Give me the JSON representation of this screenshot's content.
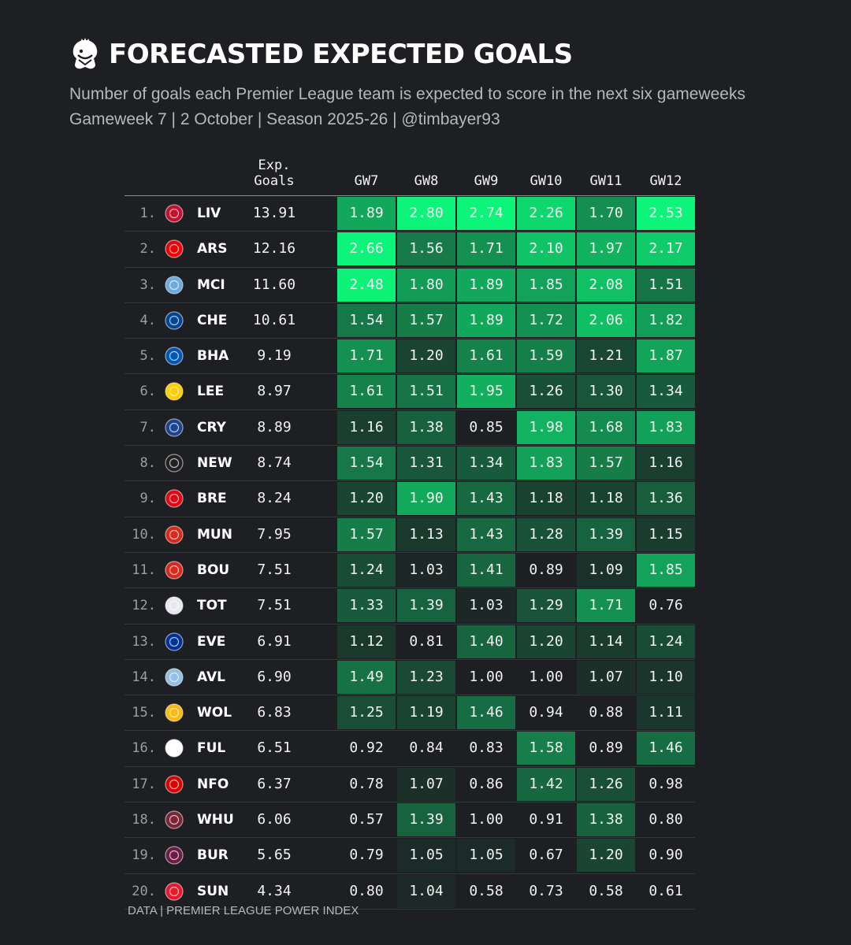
{
  "header": {
    "title": "FORECASTED EXPECTED GOALS",
    "subtitle_line1": "Number of goals each Premier League team is expected to score in the next six gameweeks",
    "subtitle_line2": "Gameweek 7 | 2 October | Season 2025-26 | @timbayer93"
  },
  "footer": {
    "source": "DATA | PREMIER LEAGUE POWER INDEX"
  },
  "colors": {
    "background": "#1d1f23",
    "low": "#1d1f23",
    "high": "#0cf47a"
  },
  "chart_data": {
    "type": "table",
    "title": "FORECASTED EXPECTED GOALS",
    "total_header": "Exp.\nGoals",
    "columns": [
      "GW7",
      "GW8",
      "GW9",
      "GW10",
      "GW11",
      "GW12"
    ],
    "color_scale": [
      1.0,
      2.5
    ],
    "rows": [
      {
        "rank": "1.",
        "team": "LIV",
        "total": "13.91",
        "values": [
          1.89,
          2.8,
          2.74,
          2.26,
          1.7,
          2.53
        ]
      },
      {
        "rank": "2.",
        "team": "ARS",
        "total": "12.16",
        "values": [
          2.66,
          1.56,
          1.71,
          2.1,
          1.97,
          2.17
        ]
      },
      {
        "rank": "3.",
        "team": "MCI",
        "total": "11.60",
        "values": [
          2.48,
          1.8,
          1.89,
          1.85,
          2.08,
          1.51
        ]
      },
      {
        "rank": "4.",
        "team": "CHE",
        "total": "10.61",
        "values": [
          1.54,
          1.57,
          1.89,
          1.72,
          2.06,
          1.82
        ]
      },
      {
        "rank": "5.",
        "team": "BHA",
        "total": "9.19",
        "values": [
          1.71,
          1.2,
          1.61,
          1.59,
          1.21,
          1.87
        ]
      },
      {
        "rank": "6.",
        "team": "LEE",
        "total": "8.97",
        "values": [
          1.61,
          1.51,
          1.95,
          1.26,
          1.3,
          1.34
        ]
      },
      {
        "rank": "7.",
        "team": "CRY",
        "total": "8.89",
        "values": [
          1.16,
          1.38,
          0.85,
          1.98,
          1.68,
          1.83
        ]
      },
      {
        "rank": "8.",
        "team": "NEW",
        "total": "8.74",
        "values": [
          1.54,
          1.31,
          1.34,
          1.83,
          1.57,
          1.16
        ]
      },
      {
        "rank": "9.",
        "team": "BRE",
        "total": "8.24",
        "values": [
          1.2,
          1.9,
          1.43,
          1.18,
          1.18,
          1.36
        ]
      },
      {
        "rank": "10.",
        "team": "MUN",
        "total": "7.95",
        "values": [
          1.57,
          1.13,
          1.43,
          1.28,
          1.39,
          1.15
        ]
      },
      {
        "rank": "11.",
        "team": "BOU",
        "total": "7.51",
        "values": [
          1.24,
          1.03,
          1.41,
          0.89,
          1.09,
          1.85
        ]
      },
      {
        "rank": "12.",
        "team": "TOT",
        "total": "7.51",
        "values": [
          1.33,
          1.39,
          1.03,
          1.29,
          1.71,
          0.76
        ]
      },
      {
        "rank": "13.",
        "team": "EVE",
        "total": "6.91",
        "values": [
          1.12,
          0.81,
          1.4,
          1.2,
          1.14,
          1.24
        ]
      },
      {
        "rank": "14.",
        "team": "AVL",
        "total": "6.90",
        "values": [
          1.49,
          1.23,
          1.0,
          1.0,
          1.07,
          1.1
        ]
      },
      {
        "rank": "15.",
        "team": "WOL",
        "total": "6.83",
        "values": [
          1.25,
          1.19,
          1.46,
          0.94,
          0.88,
          1.11
        ]
      },
      {
        "rank": "16.",
        "team": "FUL",
        "total": "6.51",
        "values": [
          0.92,
          0.84,
          0.83,
          1.58,
          0.89,
          1.46
        ]
      },
      {
        "rank": "17.",
        "team": "NFO",
        "total": "6.37",
        "values": [
          0.78,
          1.07,
          0.86,
          1.42,
          1.26,
          0.98
        ]
      },
      {
        "rank": "18.",
        "team": "WHU",
        "total": "6.06",
        "values": [
          0.57,
          1.39,
          1.0,
          0.91,
          1.38,
          0.8
        ]
      },
      {
        "rank": "19.",
        "team": "BUR",
        "total": "5.65",
        "values": [
          0.79,
          1.05,
          1.05,
          0.67,
          1.2,
          0.9
        ]
      },
      {
        "rank": "20.",
        "team": "SUN",
        "total": "4.34",
        "values": [
          0.8,
          1.04,
          0.58,
          0.73,
          0.58,
          0.61
        ]
      }
    ],
    "badge_colors": {
      "LIV": "#c8102e",
      "ARS": "#ef0107",
      "MCI": "#6cabdd",
      "CHE": "#034694",
      "BHA": "#0057b8",
      "LEE": "#ffcd00",
      "CRY": "#1b458f",
      "NEW": "#241f20",
      "BRE": "#e30613",
      "MUN": "#da291c",
      "BOU": "#da291c",
      "TOT": "#e8e8f0",
      "EVE": "#003399",
      "AVL": "#95bfe5",
      "WOL": "#fdb913",
      "FUL": "#ffffff",
      "NFO": "#dd0000",
      "WHU": "#7a263a",
      "BUR": "#6c1d45",
      "SUN": "#eb172b"
    }
  }
}
